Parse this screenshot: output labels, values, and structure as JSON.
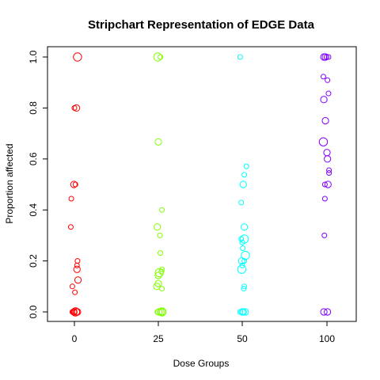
{
  "chart_data": {
    "type": "scatter",
    "title": "Stripchart Representation of EDGE Data",
    "xlabel": "Dose Groups",
    "ylabel": "Proportion affected",
    "categories": [
      "0",
      "25",
      "50",
      "100"
    ],
    "ylim": [
      0,
      1
    ],
    "yticks": [
      "0.0",
      "0.2",
      "0.4",
      "0.6",
      "0.8",
      "1.0"
    ],
    "yticks_values": [
      0,
      0.2,
      0.4,
      0.6,
      0.8,
      1.0
    ],
    "grid": false,
    "legend": "none",
    "series": [
      {
        "category": "0",
        "color": "#FF0000",
        "points": [
          {
            "jitter": 0.3,
            "y": 1.0,
            "weight": 2
          },
          {
            "jitter": 0.0,
            "y": 0.8,
            "weight": 1
          },
          {
            "jitter": 0.2,
            "y": 0.8,
            "weight": 1.5
          },
          {
            "jitter": -0.05,
            "y": 0.5,
            "weight": 1.5
          },
          {
            "jitter": 0.1,
            "y": 0.5,
            "weight": 1
          },
          {
            "jitter": -0.3,
            "y": 0.444,
            "weight": 1
          },
          {
            "jitter": -0.35,
            "y": 0.333,
            "weight": 1
          },
          {
            "jitter": 0.3,
            "y": 0.2,
            "weight": 1
          },
          {
            "jitter": 0.25,
            "y": 0.182,
            "weight": 1
          },
          {
            "jitter": 0.25,
            "y": 0.167,
            "weight": 1.5
          },
          {
            "jitter": 0.35,
            "y": 0.125,
            "weight": 1.5
          },
          {
            "jitter": -0.2,
            "y": 0.1,
            "weight": 1
          },
          {
            "jitter": 0.05,
            "y": 0.077,
            "weight": 1
          },
          {
            "jitter": -0.2,
            "y": 0.0,
            "weight": 1
          },
          {
            "jitter": -0.05,
            "y": 0.0,
            "weight": 1.5
          },
          {
            "jitter": 0.1,
            "y": 0.0,
            "weight": 2
          },
          {
            "jitter": 0.2,
            "y": 0.0,
            "weight": 1.5
          },
          {
            "jitter": 0.3,
            "y": 0.0,
            "weight": 1.5
          },
          {
            "jitter": 0.0,
            "y": 0.0,
            "weight": 1
          }
        ]
      },
      {
        "category": "25",
        "color": "#80FF00",
        "points": [
          {
            "jitter": -0.05,
            "y": 1.0,
            "weight": 2
          },
          {
            "jitter": 0.2,
            "y": 1.0,
            "weight": 1
          },
          {
            "jitter": 0.0,
            "y": 0.667,
            "weight": 1.5
          },
          {
            "jitter": 0.35,
            "y": 0.4,
            "weight": 1
          },
          {
            "jitter": -0.1,
            "y": 0.333,
            "weight": 1.5
          },
          {
            "jitter": 0.15,
            "y": 0.3,
            "weight": 1
          },
          {
            "jitter": 0.2,
            "y": 0.231,
            "weight": 1
          },
          {
            "jitter": 0.35,
            "y": 0.167,
            "weight": 1
          },
          {
            "jitter": 0.3,
            "y": 0.158,
            "weight": 1
          },
          {
            "jitter": 0.1,
            "y": 0.154,
            "weight": 2
          },
          {
            "jitter": 0.0,
            "y": 0.143,
            "weight": 1.5
          },
          {
            "jitter": 0.0,
            "y": 0.111,
            "weight": 1.5
          },
          {
            "jitter": -0.15,
            "y": 0.1,
            "weight": 1.5
          },
          {
            "jitter": 0.35,
            "y": 0.091,
            "weight": 1
          },
          {
            "jitter": -0.1,
            "y": 0.0,
            "weight": 1
          },
          {
            "jitter": 0.05,
            "y": 0.0,
            "weight": 1.5
          },
          {
            "jitter": 0.25,
            "y": 0.0,
            "weight": 1.5
          },
          {
            "jitter": 0.35,
            "y": 0.0,
            "weight": 2
          },
          {
            "jitter": 0.4,
            "y": 0.0,
            "weight": 1.5
          }
        ]
      },
      {
        "category": "50",
        "color": "#00FFFF",
        "points": [
          {
            "jitter": -0.2,
            "y": 1.0,
            "weight": 1
          },
          {
            "jitter": 0.4,
            "y": 0.571,
            "weight": 1
          },
          {
            "jitter": 0.2,
            "y": 0.538,
            "weight": 1
          },
          {
            "jitter": 0.1,
            "y": 0.5,
            "weight": 1.5
          },
          {
            "jitter": -0.1,
            "y": 0.429,
            "weight": 1
          },
          {
            "jitter": 0.2,
            "y": 0.333,
            "weight": 1.5
          },
          {
            "jitter": -0.1,
            "y": 0.286,
            "weight": 1
          },
          {
            "jitter": 0.2,
            "y": 0.286,
            "weight": 2
          },
          {
            "jitter": 0.0,
            "y": 0.273,
            "weight": 1
          },
          {
            "jitter": 0.05,
            "y": 0.25,
            "weight": 1
          },
          {
            "jitter": 0.3,
            "y": 0.222,
            "weight": 2
          },
          {
            "jitter": -0.05,
            "y": 0.2,
            "weight": 1.5
          },
          {
            "jitter": 0.2,
            "y": 0.2,
            "weight": 1
          },
          {
            "jitter": 0.0,
            "y": 0.182,
            "weight": 1
          },
          {
            "jitter": -0.05,
            "y": 0.167,
            "weight": 2
          },
          {
            "jitter": 0.2,
            "y": 0.1,
            "weight": 1
          },
          {
            "jitter": 0.15,
            "y": 0.091,
            "weight": 1
          },
          {
            "jitter": -0.2,
            "y": 0.0,
            "weight": 1
          },
          {
            "jitter": 0.0,
            "y": 0.0,
            "weight": 1.5
          },
          {
            "jitter": 0.1,
            "y": 0.0,
            "weight": 1.5
          },
          {
            "jitter": 0.3,
            "y": 0.0,
            "weight": 1.5
          }
        ]
      },
      {
        "category": "100",
        "color": "#8000FF",
        "points": [
          {
            "jitter": -0.3,
            "y": 1.0,
            "weight": 1.5
          },
          {
            "jitter": -0.15,
            "y": 1.0,
            "weight": 1.5
          },
          {
            "jitter": -0.05,
            "y": 1.0,
            "weight": 1
          },
          {
            "jitter": 0.15,
            "y": 1.0,
            "weight": 1
          },
          {
            "jitter": -0.35,
            "y": 0.923,
            "weight": 1
          },
          {
            "jitter": 0.05,
            "y": 0.909,
            "weight": 1
          },
          {
            "jitter": 0.15,
            "y": 0.857,
            "weight": 1
          },
          {
            "jitter": -0.3,
            "y": 0.833,
            "weight": 1.5
          },
          {
            "jitter": -0.15,
            "y": 0.75,
            "weight": 1.5
          },
          {
            "jitter": -0.35,
            "y": 0.667,
            "weight": 2
          },
          {
            "jitter": 0.0,
            "y": 0.625,
            "weight": 1.5
          },
          {
            "jitter": 0.05,
            "y": 0.6,
            "weight": 1.5
          },
          {
            "jitter": 0.2,
            "y": 0.556,
            "weight": 1
          },
          {
            "jitter": 0.2,
            "y": 0.545,
            "weight": 1
          },
          {
            "jitter": -0.2,
            "y": 0.5,
            "weight": 1
          },
          {
            "jitter": 0.1,
            "y": 0.5,
            "weight": 1.5
          },
          {
            "jitter": -0.2,
            "y": 0.444,
            "weight": 1
          },
          {
            "jitter": -0.25,
            "y": 0.3,
            "weight": 1
          },
          {
            "jitter": -0.3,
            "y": 0.0,
            "weight": 1.5
          },
          {
            "jitter": 0.05,
            "y": 0.0,
            "weight": 1.5
          }
        ]
      }
    ]
  }
}
